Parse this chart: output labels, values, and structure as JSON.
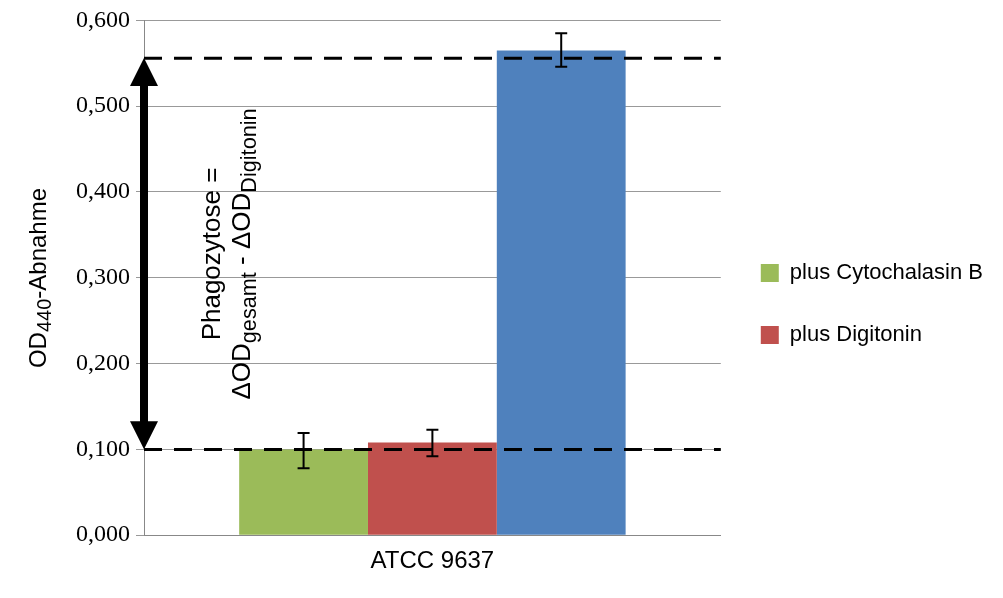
{
  "chart_data": {
    "type": "bar",
    "ylabel": "OD$_{440}$-Abnahme",
    "categories": [
      "ATCC 9637"
    ],
    "series": [
      {
        "name": "plus Cytochalasin B",
        "color": "#9bbb59",
        "values": [
          0.1
        ],
        "errors": [
          [
            0.078,
            0.119
          ]
        ]
      },
      {
        "name": "plus Digitonin",
        "color": "#c0504d",
        "values": [
          0.108
        ],
        "errors": [
          [
            0.092,
            0.123
          ]
        ]
      },
      {
        "color": "#4f81bd",
        "values": [
          0.565
        ],
        "errors": [
          [
            0.546,
            0.585
          ]
        ]
      }
    ],
    "ylim": [
      0,
      0.6
    ],
    "yticks": [
      {
        "value": 0,
        "label": "0,000"
      },
      {
        "value": 0.1,
        "label": "0,100"
      },
      {
        "value": 0.2,
        "label": "0,200"
      },
      {
        "value": 0.3,
        "label": "0,300"
      },
      {
        "value": 0.4,
        "label": "0,400"
      },
      {
        "value": 0.5,
        "label": "0,500"
      },
      {
        "value": 0.6,
        "label": "0,600"
      }
    ],
    "grid": "y",
    "legend": "right",
    "ref_lines": [
      {
        "axis": "y",
        "value": 0.556,
        "color": "#000000",
        "line_style": "dashed"
      },
      {
        "axis": "y",
        "value": 0.1,
        "color": "#000000",
        "line_style": "dashed"
      }
    ],
    "annotations": [
      "Phagozytose =\nΔOD$_{gesamt}$ - ΔOD$_{Digitonin}$"
    ]
  }
}
